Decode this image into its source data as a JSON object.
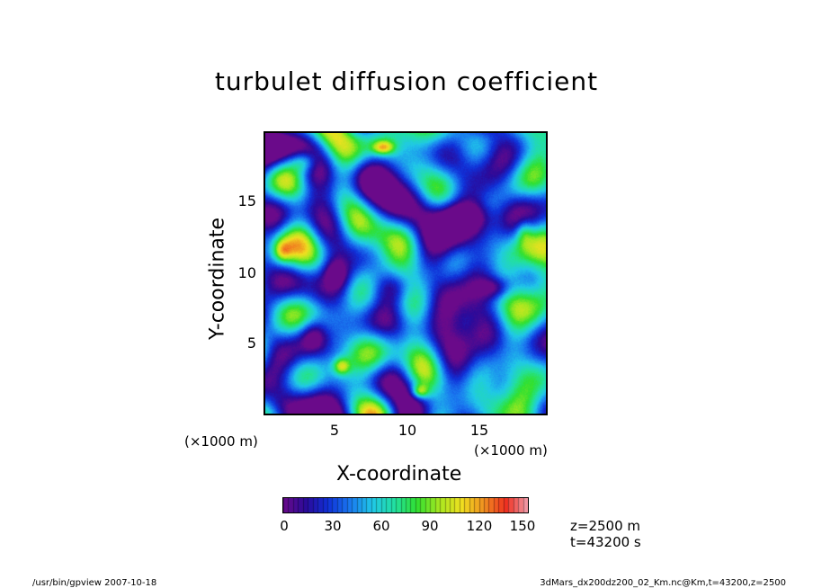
{
  "chart_data": {
    "type": "heatmap",
    "title": "turbulet diffusion coefficient",
    "xlabel": "X-coordinate",
    "ylabel": "Y-coordinate",
    "x_multiplier": "(×1000 m)",
    "y_multiplier": "(×1000 m)",
    "xlim": [
      0,
      20
    ],
    "ylim": [
      0,
      20
    ],
    "x_ticks": [
      5,
      10,
      15
    ],
    "y_ticks": [
      5,
      10,
      15
    ],
    "x_tick_labels": [
      "5",
      "10",
      "15"
    ],
    "y_tick_labels": [
      "5",
      "10",
      "15"
    ],
    "colorbar": {
      "range": [
        0,
        150
      ],
      "ticks": [
        0,
        30,
        60,
        90,
        120,
        150
      ],
      "tick_labels": [
        "0",
        "30",
        "60",
        "90",
        "120",
        "150"
      ],
      "colors": [
        "#6a0a8a",
        "#2a0a9a",
        "#1030d8",
        "#1a7af0",
        "#20c8e8",
        "#22e0a0",
        "#30e030",
        "#a8e820",
        "#f0e020",
        "#f09020",
        "#f03020",
        "#f0a0b0"
      ]
    },
    "grid": false,
    "annotations": [
      "z=2500 m",
      "t=43200 s"
    ]
  },
  "footer": {
    "left": "/usr/bin/gpview   2007-10-18",
    "right": "3dMars_dx200dz200_02_Km.nc@Km,t=43200,z=2500"
  }
}
